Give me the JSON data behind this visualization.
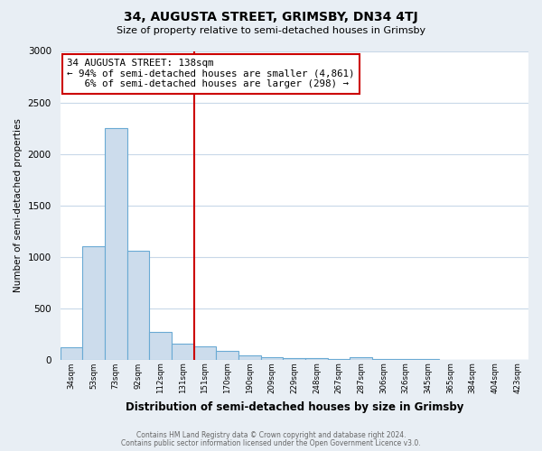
{
  "title": "34, AUGUSTA STREET, GRIMSBY, DN34 4TJ",
  "subtitle": "Size of property relative to semi-detached houses in Grimsby",
  "xlabel": "Distribution of semi-detached houses by size in Grimsby",
  "ylabel": "Number of semi-detached properties",
  "bar_labels": [
    "34sqm",
    "53sqm",
    "73sqm",
    "92sqm",
    "112sqm",
    "131sqm",
    "151sqm",
    "170sqm",
    "190sqm",
    "209sqm",
    "229sqm",
    "248sqm",
    "267sqm",
    "287sqm",
    "306sqm",
    "326sqm",
    "345sqm",
    "365sqm",
    "384sqm",
    "404sqm",
    "423sqm"
  ],
  "bar_values": [
    120,
    1100,
    2250,
    1060,
    270,
    155,
    130,
    80,
    40,
    20,
    15,
    12,
    8,
    20,
    2,
    1,
    1,
    0,
    0,
    0,
    0
  ],
  "bar_color": "#ccdcec",
  "bar_edge_color": "#6aaad4",
  "vline_x": 6.0,
  "vline_color": "#cc0000",
  "annotation_text": "34 AUGUSTA STREET: 138sqm\n← 94% of semi-detached houses are smaller (4,861)\n   6% of semi-detached houses are larger (298) →",
  "annotation_box_color": "#ffffff",
  "annotation_box_edge": "#cc0000",
  "ylim": [
    0,
    3000
  ],
  "yticks": [
    0,
    500,
    1000,
    1500,
    2000,
    2500,
    3000
  ],
  "footer_line1": "Contains HM Land Registry data © Crown copyright and database right 2024.",
  "footer_line2": "Contains public sector information licensed under the Open Government Licence v3.0.",
  "background_color": "#e8eef4",
  "plot_bg_color": "#ffffff",
  "grid_color": "#c8d8e8"
}
